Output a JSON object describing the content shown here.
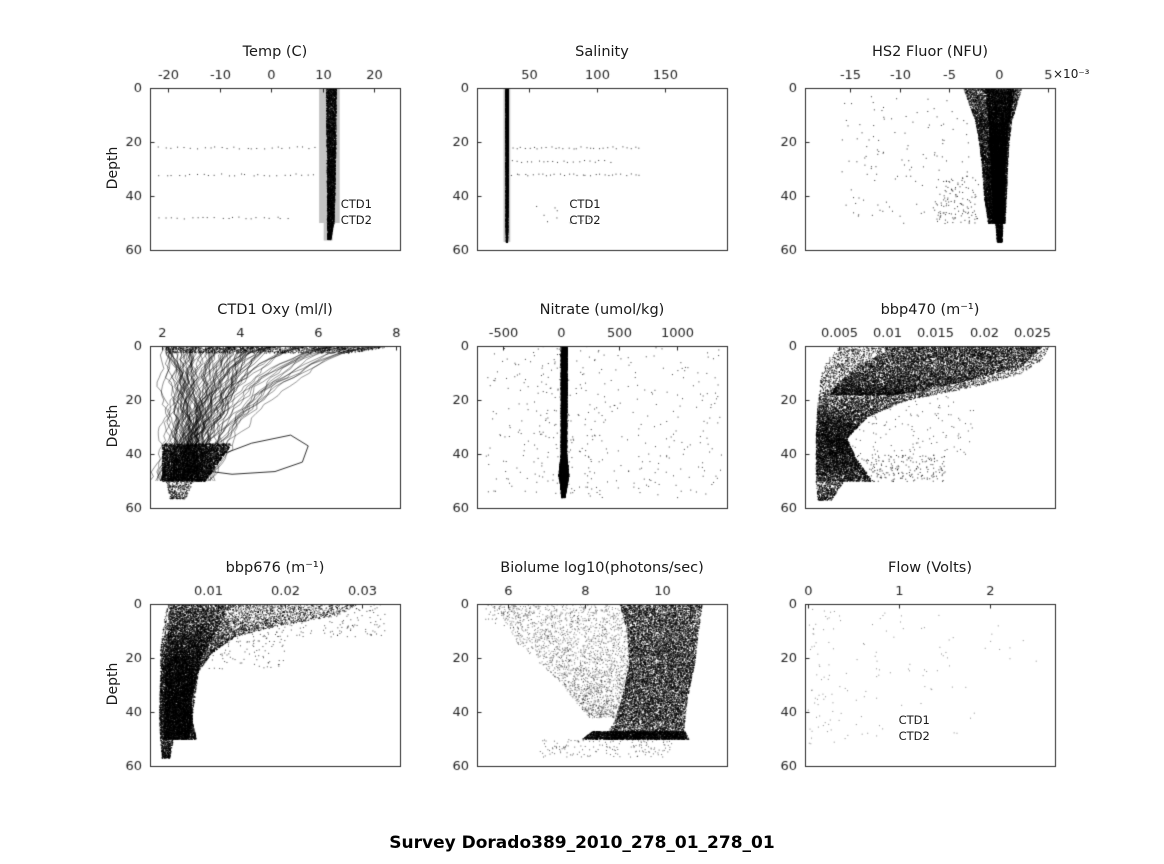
{
  "figure_title": "Survey Dorado389_2010_278_01_278_01",
  "ylabel": "Depth",
  "colors": {
    "axis": "#262626",
    "data": "#000000",
    "band": "#c3c3c3",
    "background": "#ffffff"
  },
  "yaxis": {
    "ylim": [
      0,
      60
    ],
    "yticks": [
      0,
      20,
      40,
      60
    ]
  },
  "chart_data": [
    {
      "type": "scatter",
      "title": "Temp (C)",
      "xlim": [
        -23.5,
        25
      ],
      "xticks": [
        -20,
        -10,
        0,
        10,
        20
      ],
      "xtick_labels": [
        "-20",
        "-10",
        "0",
        "10",
        "20"
      ],
      "exponent": "",
      "labels": [
        {
          "text": "CTD1",
          "x": 13.5,
          "y": 43
        },
        {
          "text": "CTD2",
          "x": 13.5,
          "y": 49
        }
      ],
      "layers": [
        {
          "kind": "band",
          "x0": 9.3,
          "x1": 13.3,
          "y0": 0,
          "y1": 50,
          "color": "#c3c3c3"
        },
        {
          "kind": "band",
          "x0": 10.2,
          "x1": 11.9,
          "y0": 50,
          "y1": 56.5,
          "color": "#c3c3c3"
        },
        {
          "kind": "cloud",
          "n": 5000,
          "alpha": 0.75,
          "profile": [
            [
              0,
              10.6,
              12.6
            ],
            [
              20,
              10.7,
              12.5
            ],
            [
              40,
              10.8,
              12.3
            ],
            [
              50,
              10.8,
              12.1
            ],
            [
              56,
              10.9,
              11.5
            ]
          ]
        },
        {
          "kind": "rows",
          "ys": [
            22,
            32
          ],
          "x0": -22,
          "x1": 9,
          "n": 26
        },
        {
          "kind": "rows",
          "ys": [
            48
          ],
          "x0": -22,
          "x1": 4,
          "n": 22
        }
      ]
    },
    {
      "type": "scatter",
      "title": "Salinity",
      "xlim": [
        12,
        196
      ],
      "xticks": [
        50,
        100,
        150
      ],
      "xtick_labels": [
        "50",
        "100",
        "150"
      ],
      "exponent": "",
      "labels": [
        {
          "text": "CTD1",
          "x": 80,
          "y": 43
        },
        {
          "text": "CTD2",
          "x": 80,
          "y": 49
        }
      ],
      "layers": [
        {
          "kind": "band",
          "x0": 31.5,
          "x1": 36.5,
          "y0": 0,
          "y1": 57,
          "color": "#c3c3c3"
        },
        {
          "kind": "cloud",
          "n": 6000,
          "alpha": 0.8,
          "profile": [
            [
              0,
              32.8,
              34.8
            ],
            [
              30,
              33.0,
              34.6
            ],
            [
              50,
              33.0,
              34.4
            ],
            [
              57,
              33.2,
              34.2
            ]
          ]
        },
        {
          "kind": "rows",
          "ys": [
            22,
            32
          ],
          "x0": 36,
          "x1": 133,
          "n": 30
        },
        {
          "kind": "rows",
          "ys": [
            27
          ],
          "x0": 36,
          "x1": 112,
          "n": 20
        },
        {
          "kind": "points",
          "x0": 55,
          "x1": 95,
          "y0": 43,
          "y1": 50,
          "n": 10
        }
      ]
    },
    {
      "type": "scatter",
      "title": "HS2 Fluor (NFU)",
      "xlim": [
        -19.6,
        5.7
      ],
      "xticks": [
        -15,
        -10,
        -5,
        0,
        5
      ],
      "xtick_labels": [
        "-15",
        "-10",
        "-5",
        "0",
        "5"
      ],
      "exponent": "×10⁻³",
      "labels": [],
      "layers": [
        {
          "kind": "cloud",
          "n": 12000,
          "alpha": 0.7,
          "profile": [
            [
              0,
              -3.6,
              2.3
            ],
            [
              6,
              -3.0,
              1.8
            ],
            [
              12,
              -2.4,
              1.3
            ],
            [
              20,
              -2.0,
              1.0
            ],
            [
              30,
              -1.7,
              0.85
            ],
            [
              40,
              -1.5,
              0.75
            ],
            [
              50,
              -1.1,
              0.6
            ]
          ]
        },
        {
          "kind": "cloud",
          "n": 8000,
          "alpha": 0.85,
          "profile": [
            [
              0,
              -1.4,
              1.6
            ],
            [
              15,
              -1.0,
              0.9
            ],
            [
              30,
              -0.8,
              0.6
            ],
            [
              50,
              -0.5,
              0.45
            ]
          ]
        },
        {
          "kind": "cloud",
          "n": 600,
          "alpha": 0.8,
          "profile": [
            [
              50,
              -0.35,
              0.4
            ],
            [
              57,
              -0.2,
              0.3
            ]
          ]
        },
        {
          "kind": "points",
          "x0": -16,
          "x1": -3,
          "y0": 3,
          "y1": 50,
          "n": 130,
          "alpha": 0.8
        },
        {
          "kind": "points",
          "x0": -6.5,
          "x1": -2,
          "y0": 33,
          "y1": 50,
          "n": 110,
          "alpha": 0.8
        }
      ]
    },
    {
      "type": "scatter",
      "title": "CTD1 Oxy (ml/l)",
      "xlim": [
        1.7,
        8.1
      ],
      "xticks": [
        2,
        4,
        6,
        8
      ],
      "xtick_labels": [
        "2",
        "4",
        "6",
        "8"
      ],
      "exponent": "",
      "labels": [],
      "layers": [
        {
          "kind": "profiles",
          "n": 55,
          "tx0": 2.1,
          "tx1": 7.9,
          "bx0": 2.0,
          "bx1": 3.3,
          "y0": 0,
          "y1": 50,
          "pow": 0.55,
          "wig": 0.22,
          "alpha": 0.5
        },
        {
          "kind": "profiles",
          "n": 45,
          "tx0": 2.0,
          "tx1": 5.0,
          "bx0": 2.0,
          "bx1": 2.9,
          "y0": 0,
          "y1": 50,
          "pow": 0.8,
          "wig": 0.18,
          "alpha": 0.55
        },
        {
          "kind": "cloud",
          "n": 5000,
          "alpha": 0.8,
          "profile": [
            [
              36,
              2.0,
              3.8
            ],
            [
              44,
              2.0,
              3.4
            ],
            [
              50,
              2.0,
              3.1
            ]
          ]
        },
        {
          "kind": "cloud",
          "n": 1200,
          "alpha": 0.7,
          "profile": [
            [
              0,
              2.1,
              7.9
            ],
            [
              2.5,
              2.1,
              6.8
            ]
          ]
        },
        {
          "kind": "path",
          "alpha": 0.9,
          "pts": [
            [
              3.2,
              42
            ],
            [
              4.3,
              36
            ],
            [
              5.3,
              33
            ],
            [
              5.75,
              37
            ],
            [
              5.6,
              43
            ],
            [
              4.9,
              46.5
            ],
            [
              3.8,
              47.5
            ],
            [
              3.0,
              46
            ]
          ]
        },
        {
          "kind": "cloud",
          "n": 350,
          "alpha": 0.7,
          "profile": [
            [
              50,
              2.1,
              2.8
            ],
            [
              56.5,
              2.2,
              2.6
            ]
          ]
        }
      ]
    },
    {
      "type": "scatter",
      "title": "Nitrate (umol/kg)",
      "xlim": [
        -725,
        1430
      ],
      "xticks": [
        -500,
        0,
        500,
        1000
      ],
      "xtick_labels": [
        "-500",
        "0",
        "500",
        "1000"
      ],
      "exponent": "",
      "labels": [],
      "layers": [
        {
          "kind": "cloud",
          "n": 9000,
          "alpha": 0.85,
          "profile": [
            [
              0,
              -5,
              50
            ],
            [
              40,
              -5,
              45
            ],
            [
              48,
              -25,
              65
            ],
            [
              50,
              -15,
              55
            ],
            [
              56,
              0,
              30
            ]
          ]
        },
        {
          "kind": "points",
          "x0": -650,
          "x1": 1380,
          "y0": 0,
          "y1": 56,
          "n": 320,
          "alpha": 0.75
        },
        {
          "kind": "points",
          "x0": -250,
          "x1": 350,
          "y0": 0,
          "y1": 55,
          "n": 110,
          "alpha": 0.75
        }
      ]
    },
    {
      "type": "scatter",
      "title": "bbp470 (m⁻¹)",
      "xlim": [
        0.0015,
        0.0274
      ],
      "xticks": [
        0.005,
        0.01,
        0.015,
        0.02,
        0.025
      ],
      "xtick_labels": [
        "0.005",
        "0.01",
        "0.015",
        "0.02",
        "0.025"
      ],
      "exponent": "",
      "labels": [],
      "layers": [
        {
          "kind": "cloud",
          "n": 14000,
          "alpha": 0.75,
          "profile": [
            [
              0,
              0.005,
              0.0268
            ],
            [
              5,
              0.0038,
              0.026
            ],
            [
              10,
              0.0032,
              0.024
            ],
            [
              15,
              0.003,
              0.019
            ],
            [
              20,
              0.0028,
              0.012
            ],
            [
              26,
              0.0027,
              0.008
            ],
            [
              34,
              0.0026,
              0.0058
            ],
            [
              42,
              0.0026,
              0.0068
            ],
            [
              50,
              0.0026,
              0.0085
            ]
          ]
        },
        {
          "kind": "cloud",
          "n": 7000,
          "alpha": 0.8,
          "profile": [
            [
              0,
              0.011,
              0.026
            ],
            [
              7,
              0.007,
              0.024
            ],
            [
              13,
              0.005,
              0.018
            ],
            [
              18,
              0.004,
              0.011
            ]
          ]
        },
        {
          "kind": "cloud",
          "n": 500,
          "alpha": 0.8,
          "profile": [
            [
              50,
              0.0026,
              0.0055
            ],
            [
              57,
              0.0028,
              0.0042
            ]
          ]
        },
        {
          "kind": "points",
          "x0": 0.005,
          "x1": 0.016,
          "y0": 40,
          "y1": 50,
          "n": 260,
          "alpha": 0.8
        },
        {
          "kind": "points",
          "x0": 0.006,
          "x1": 0.019,
          "y0": 18,
          "y1": 40,
          "n": 130,
          "alpha": 0.7
        }
      ]
    },
    {
      "type": "scatter",
      "title": "bbp676 (m⁻¹)",
      "xlim": [
        0.0025,
        0.035
      ],
      "xticks": [
        0.01,
        0.02,
        0.03
      ],
      "xtick_labels": [
        "0.01",
        "0.02",
        "0.03"
      ],
      "exponent": "",
      "labels": [],
      "layers": [
        {
          "kind": "cloud",
          "n": 12000,
          "alpha": 0.75,
          "profile": [
            [
              0,
              0.0048,
              0.0295
            ],
            [
              4,
              0.0044,
              0.027
            ],
            [
              8,
              0.0042,
              0.019
            ],
            [
              12,
              0.004,
              0.0135
            ],
            [
              18,
              0.0038,
              0.0105
            ],
            [
              26,
              0.0038,
              0.0085
            ],
            [
              36,
              0.0037,
              0.0078
            ],
            [
              44,
              0.0037,
              0.008
            ],
            [
              50,
              0.0038,
              0.0085
            ]
          ]
        },
        {
          "kind": "cloud",
          "n": 7000,
          "alpha": 0.8,
          "profile": [
            [
              0,
              0.005,
              0.013
            ],
            [
              20,
              0.0045,
              0.009
            ],
            [
              50,
              0.0042,
              0.0075
            ]
          ]
        },
        {
          "kind": "cloud",
          "n": 450,
          "alpha": 0.8,
          "profile": [
            [
              50,
              0.0038,
              0.0055
            ],
            [
              57,
              0.004,
              0.005
            ]
          ]
        },
        {
          "kind": "points",
          "x0": 0.013,
          "x1": 0.033,
          "y0": 0,
          "y1": 12,
          "n": 200,
          "alpha": 0.7
        },
        {
          "kind": "points",
          "x0": 0.009,
          "x1": 0.02,
          "y0": 10,
          "y1": 24,
          "n": 110,
          "alpha": 0.7
        }
      ]
    },
    {
      "type": "scatter",
      "title": "Biolume log10(photons/sec)",
      "xlim": [
        5.2,
        11.7
      ],
      "xticks": [
        6,
        8,
        10
      ],
      "xtick_labels": [
        "6",
        "8",
        "10"
      ],
      "exponent": "",
      "labels": [],
      "layers": [
        {
          "kind": "cloud",
          "n": 13000,
          "alpha": 0.75,
          "profile": [
            [
              0,
              8.9,
              11.05
            ],
            [
              10,
              9.1,
              10.95
            ],
            [
              22,
              9.15,
              10.85
            ],
            [
              32,
              9.0,
              10.7
            ],
            [
              42,
              8.8,
              10.6
            ],
            [
              50,
              8.5,
              10.55
            ]
          ]
        },
        {
          "kind": "cloud",
          "n": 2600,
          "alpha": 0.45,
          "profile": [
            [
              0,
              5.7,
              9.2
            ],
            [
              14,
              6.2,
              9.3
            ],
            [
              28,
              7.3,
              9.2
            ],
            [
              42,
              8.1,
              9.0
            ]
          ]
        },
        {
          "kind": "cloud",
          "n": 2500,
          "alpha": 0.8,
          "profile": [
            [
              47,
              8.2,
              10.6
            ],
            [
              50,
              7.9,
              10.7
            ]
          ]
        },
        {
          "kind": "points",
          "x0": 6.8,
          "x1": 10.3,
          "y0": 50,
          "y1": 56.5,
          "n": 160,
          "alpha": 0.6
        },
        {
          "kind": "points",
          "x0": 5.4,
          "x1": 6.6,
          "y0": 0,
          "y1": 9,
          "n": 50,
          "alpha": 0.6
        }
      ]
    },
    {
      "type": "scatter",
      "title": "Flow (Volts)",
      "xlim": [
        -0.03,
        2.72
      ],
      "xticks": [
        0,
        1,
        2
      ],
      "xtick_labels": [
        "0",
        "1",
        "2"
      ],
      "exponent": "",
      "labels": [
        {
          "text": "CTD1",
          "x": 1.0,
          "y": 43
        },
        {
          "text": "CTD2",
          "x": 1.0,
          "y": 49
        }
      ],
      "layers": [
        {
          "kind": "points",
          "x0": 0.0,
          "x1": 1.6,
          "y0": 0,
          "y1": 50,
          "n": 80,
          "alpha": 0.45
        },
        {
          "kind": "points",
          "x0": 0.0,
          "x1": 0.3,
          "y0": 0,
          "y1": 52,
          "n": 45,
          "alpha": 0.45
        },
        {
          "kind": "points",
          "x0": 1.6,
          "x1": 2.6,
          "y0": 2,
          "y1": 48,
          "n": 14,
          "alpha": 0.45
        }
      ]
    }
  ]
}
